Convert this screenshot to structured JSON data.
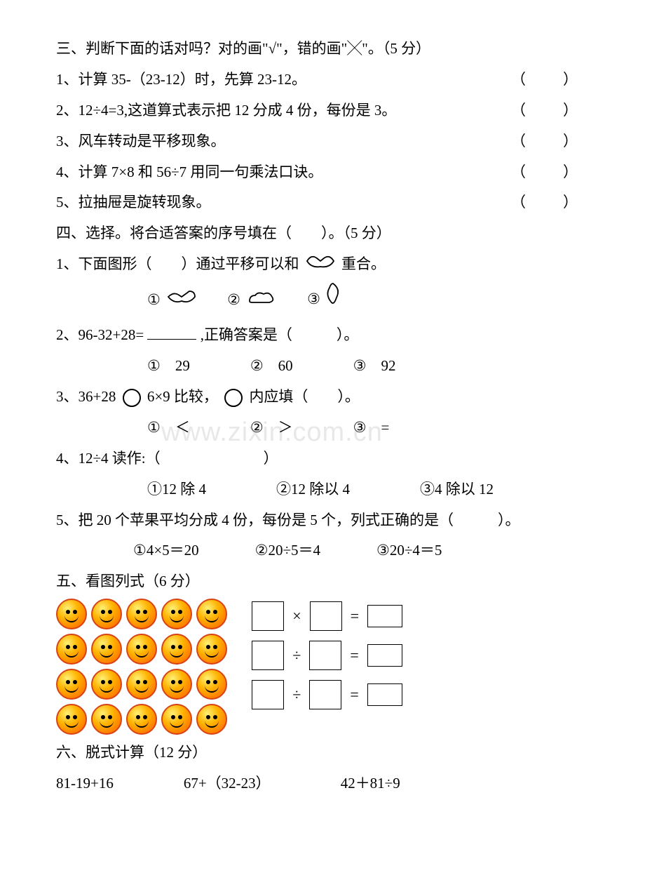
{
  "watermark": "www.zixin.com.cn",
  "s3": {
    "title": "三、判断下面的话对吗？对的画\"√\"，错的画\"╳\"。（5 分）",
    "q1": "1、计算 35-（23-12）时，先算 23-12。",
    "q2": "2、12÷4=3,这道算式表示把 12 分成 4 份，每份是 3。",
    "q3": "3、风车转动是平移现象。",
    "q4": "4、计算 7×8 和 56÷7 用同一句乘法口诀。",
    "q5": "5、拉抽屉是旋转现象。",
    "bracket": "（　）"
  },
  "s4": {
    "title": "四、选择。将合适答案的序号填在（　　）。（5 分）",
    "q1": "1、下面图形（　　）通过平移可以和",
    "q1b": "重合。",
    "q2": "2、96-32+28=",
    "q2b": ",正确答案是（　　　）。",
    "q2o1": "①　29",
    "q2o2": "②　60",
    "q2o3": "③　92",
    "q3a": "3、36+28",
    "q3b": "6×9 比较，",
    "q3c": "内应填（　　）。",
    "q3o1": "①　＜",
    "q3o2": "②　＞",
    "q3o3": "③　=",
    "q4": "4、12÷4 读作:（　　　　　　　）",
    "q4o1": "①12 除 4",
    "q4o2": "②12 除以 4",
    "q4o3": "③4 除以 12",
    "q5": "5、把 20 个苹果平均分成 4 份，每份是 5 个，列式正确的是（　　　）。",
    "q5o1": "①4×5＝20",
    "q5o2": "②20÷5＝4",
    "q5o3": "③20÷4＝5",
    "c1": "①",
    "c2": "②",
    "c3": "③"
  },
  "s5": {
    "title": "五、看图列式（6 分）",
    "op_mul": "×",
    "op_div": "÷",
    "op_eq": "="
  },
  "s6": {
    "title": "六、脱式计算（12 分）",
    "e1": "81-19+16",
    "e2": "67+（32-23）",
    "e3": "42＋81÷9"
  },
  "smiley_rows": 4,
  "smiley_cols": 5
}
